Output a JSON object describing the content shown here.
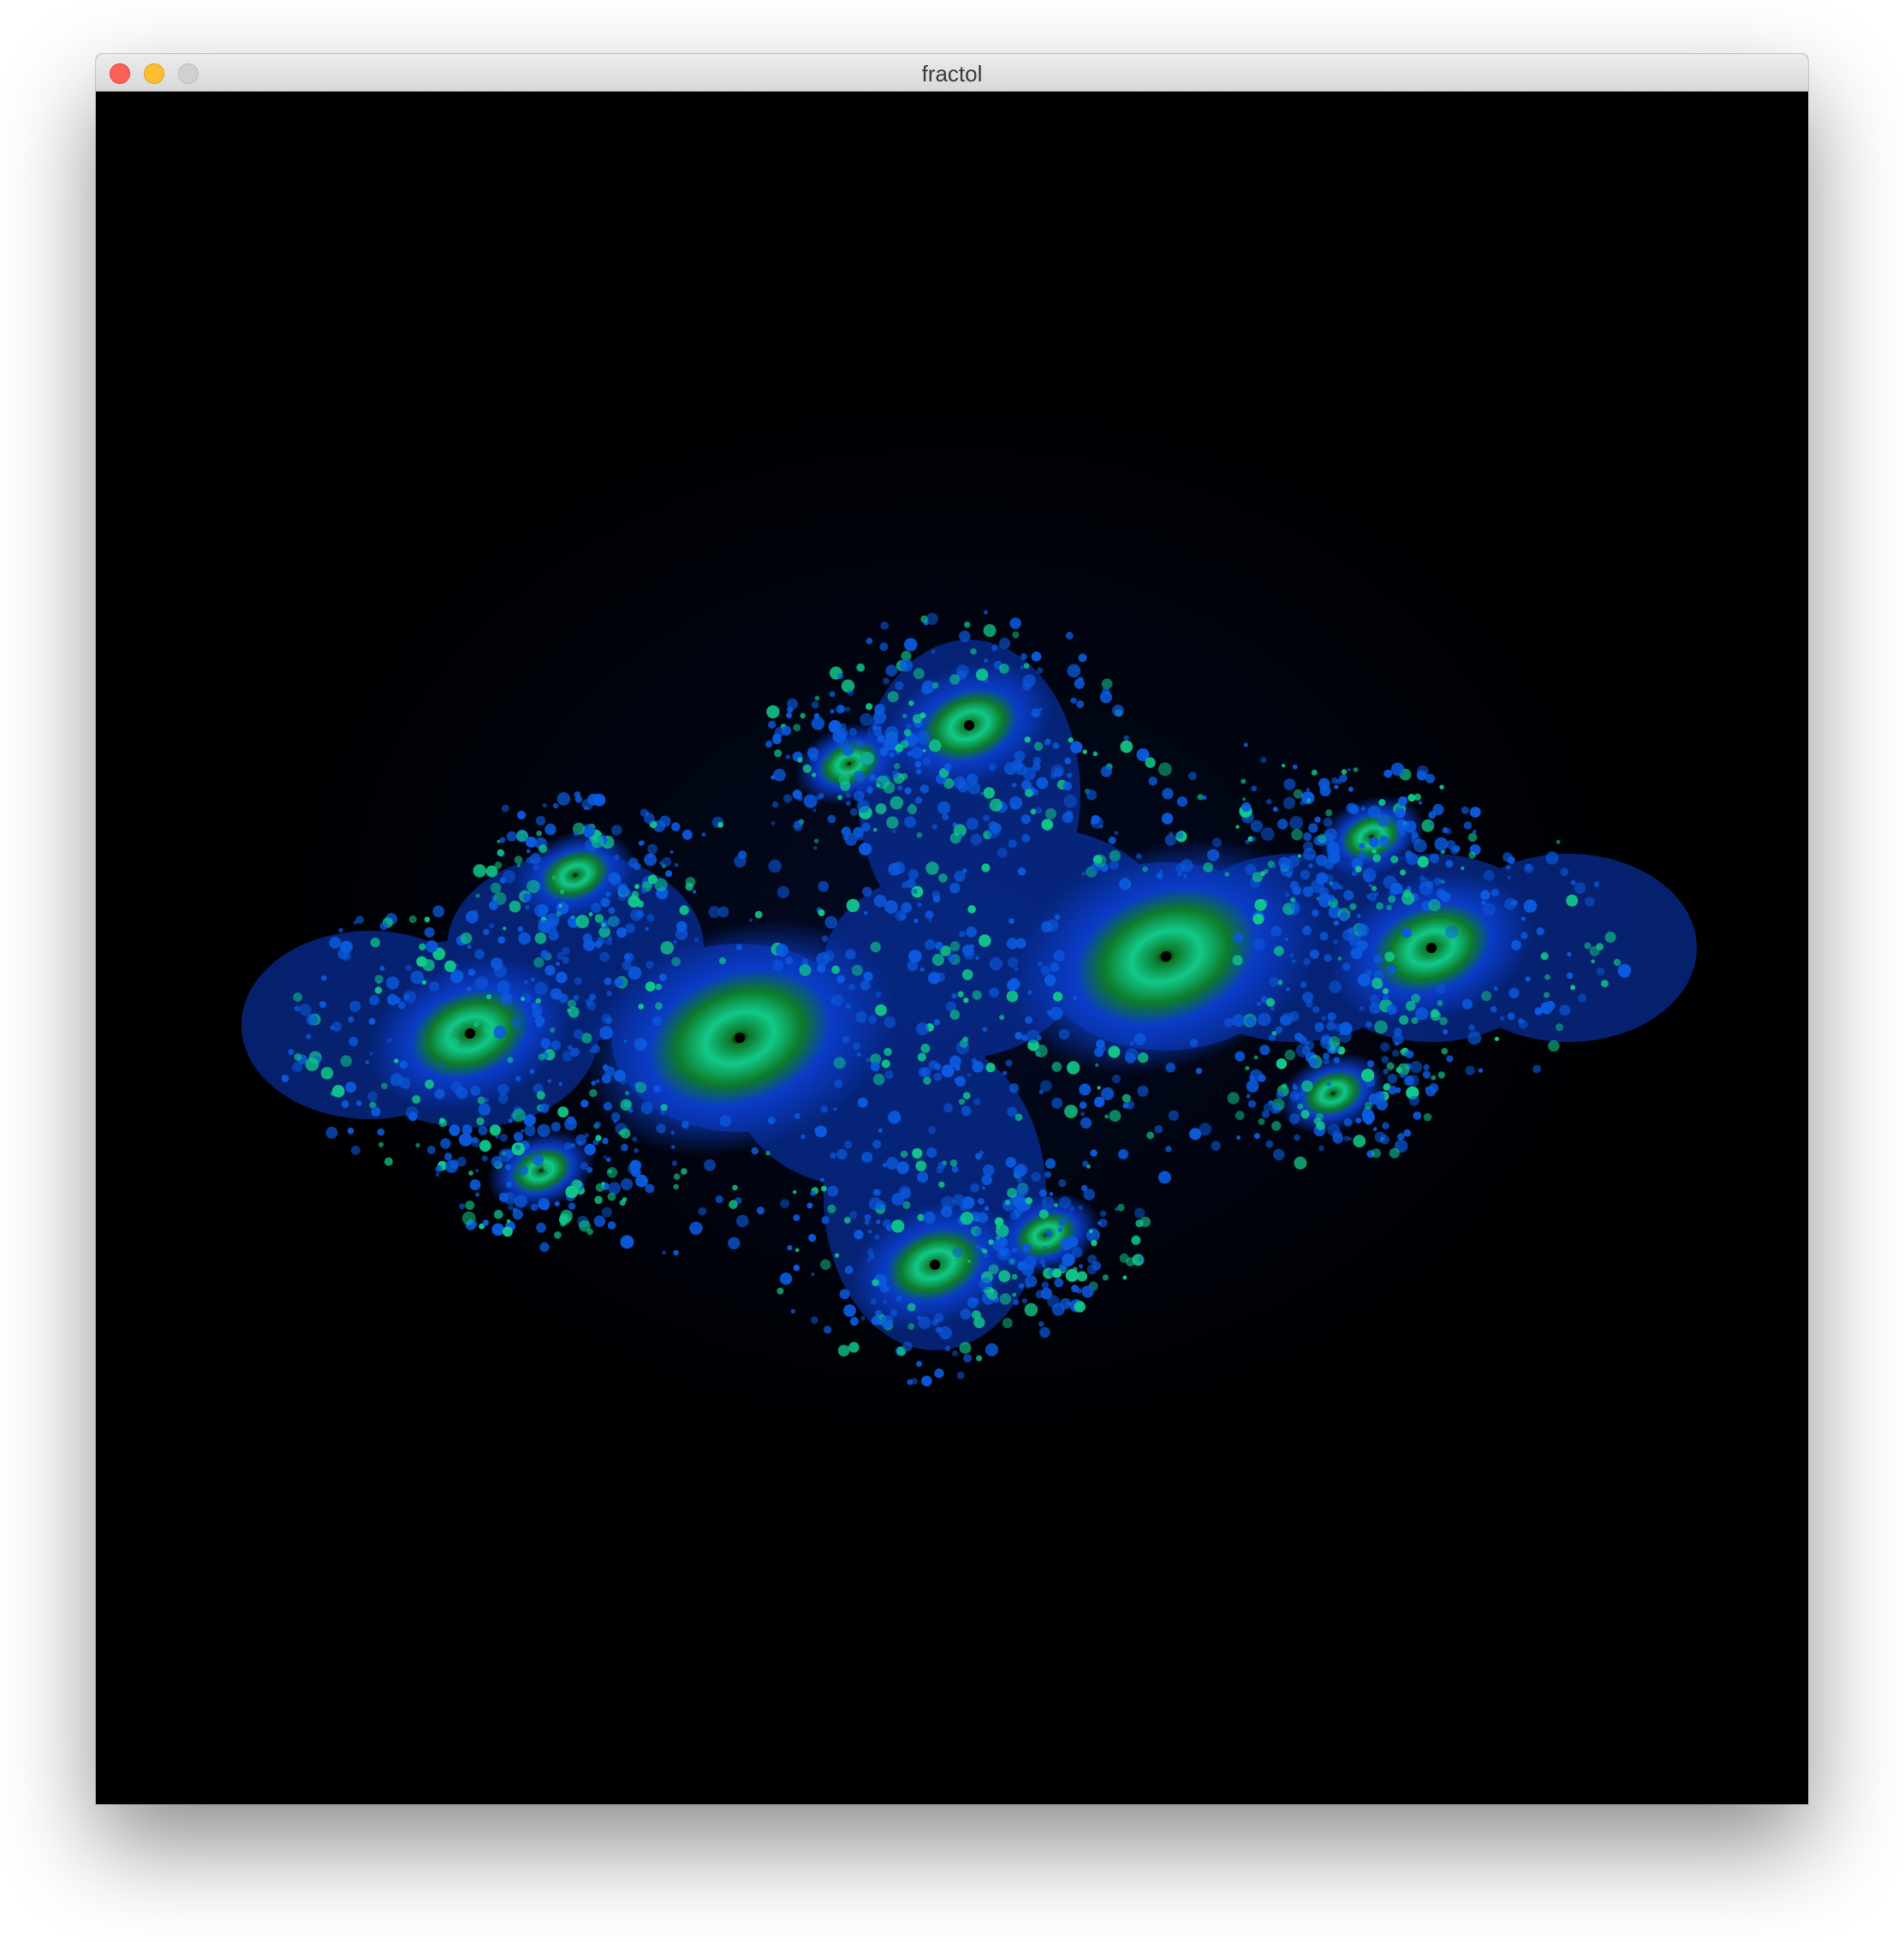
{
  "window": {
    "title": "fractol"
  },
  "titlebar_buttons": [
    "close",
    "minimize",
    "zoom"
  ],
  "fractal": {
    "type": "julia",
    "colors": {
      "background": "#000000",
      "halo": "#020a24",
      "body": "#0a3cc8",
      "edge": "#0b5be0",
      "ring": "#12c98a",
      "core": "#0d7a2a",
      "center": "#000000"
    }
  }
}
